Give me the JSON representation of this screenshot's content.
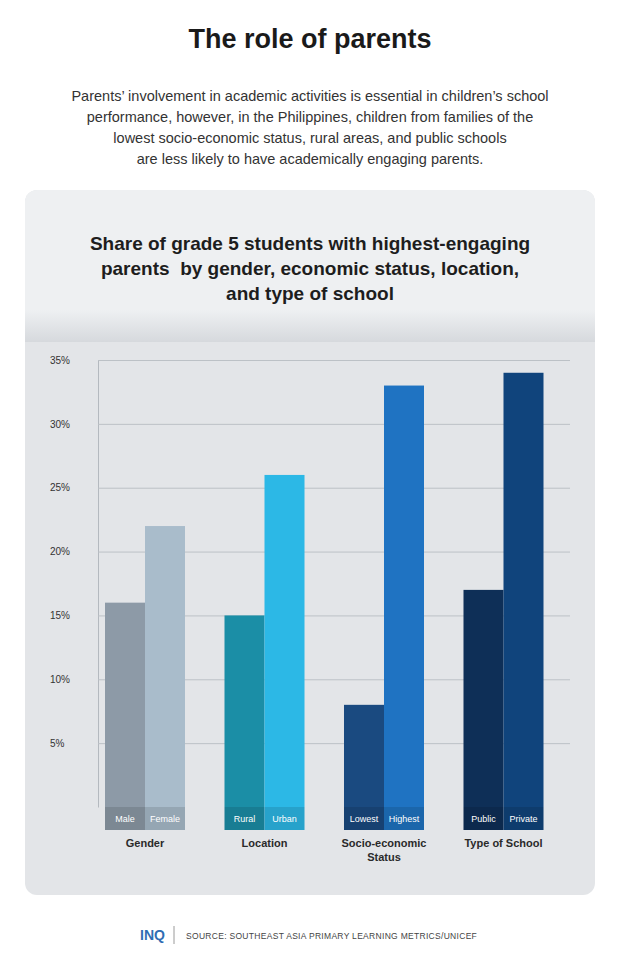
{
  "page": {
    "title": "The role of parents",
    "subtitle": [
      "Parents’ involvement in academic activities is essential in children’s school",
      "performance, however, in the Philippines, children from families of the",
      "lowest socio-economic status, rural areas, and public schools",
      "are less likely to have academically engaging parents."
    ],
    "logo": "INQ",
    "source": "SOURCE: SOUTHEAST ASIA PRIMARY LEARNING METRICS/UNICEF"
  },
  "chart_data": {
    "type": "bar",
    "title": [
      "Share of grade 5 students with highest-engaging",
      "parents  by gender, economic status, location,",
      "and type of school"
    ],
    "groups": [
      {
        "name": "Gender",
        "categories": [
          "Male",
          "Female"
        ],
        "values": [
          16,
          22
        ],
        "colors": [
          "#8d9aa7",
          "#a9bccb"
        ]
      },
      {
        "name": "Location",
        "categories": [
          "Rural",
          "Urban"
        ],
        "values": [
          15,
          26
        ],
        "colors": [
          "#1b8ea6",
          "#2cb8e6"
        ]
      },
      {
        "name": "Socio-economic Status",
        "categories": [
          "Lowest",
          "Highest"
        ],
        "values": [
          8,
          33
        ],
        "colors": [
          "#1a4a80",
          "#1f73c2"
        ]
      },
      {
        "name": "Type of School",
        "categories": [
          "Public",
          "Private"
        ],
        "values": [
          17,
          34
        ],
        "colors": [
          "#0e2f57",
          "#10447c"
        ]
      }
    ],
    "ylim": [
      0,
      35
    ],
    "yticks": [
      {
        "value": 5,
        "label": "5%"
      },
      {
        "value": 10,
        "label": "10%"
      },
      {
        "value": 15,
        "label": "15%"
      },
      {
        "value": 20,
        "label": "20%"
      },
      {
        "value": 25,
        "label": "25%"
      },
      {
        "value": 30,
        "label": "30%"
      },
      {
        "value": 35,
        "label": "35%"
      }
    ],
    "grid": true
  }
}
